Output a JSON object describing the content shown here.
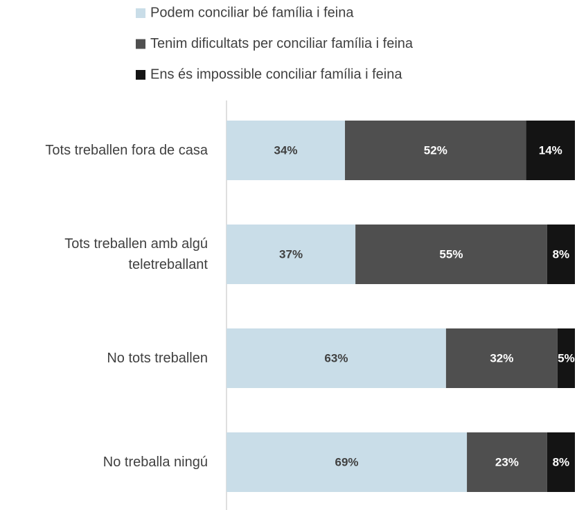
{
  "chart_data": {
    "type": "stacked_bar_horizontal",
    "categories": [
      "Tots treballen fora de casa",
      "Tots treballen amb algú teletreballant",
      "No tots treballen",
      "No treballa ningú"
    ],
    "series": [
      {
        "name": "Podem conciliar bé família i feina",
        "color": "#c9dde8",
        "values": [
          34,
          37,
          63,
          69
        ],
        "value_labels": [
          "34%",
          "37%",
          "63%",
          "69%"
        ],
        "label_color": "#404040"
      },
      {
        "name": "Tenim dificultats per conciliar família i feina",
        "color": "#4f4f4f",
        "values": [
          52,
          55,
          32,
          23
        ],
        "value_labels": [
          "52%",
          "55%",
          "32%",
          "23%"
        ],
        "label_color": "#ffffff"
      },
      {
        "name": "Ens és impossible conciliar família i feina",
        "color": "#141414",
        "values": [
          14,
          8,
          5,
          8
        ],
        "value_labels": [
          "14%",
          "8%",
          "5%",
          "8%"
        ],
        "label_color": "#ffffff"
      }
    ],
    "xlim": [
      0,
      100
    ],
    "legend": "top"
  }
}
